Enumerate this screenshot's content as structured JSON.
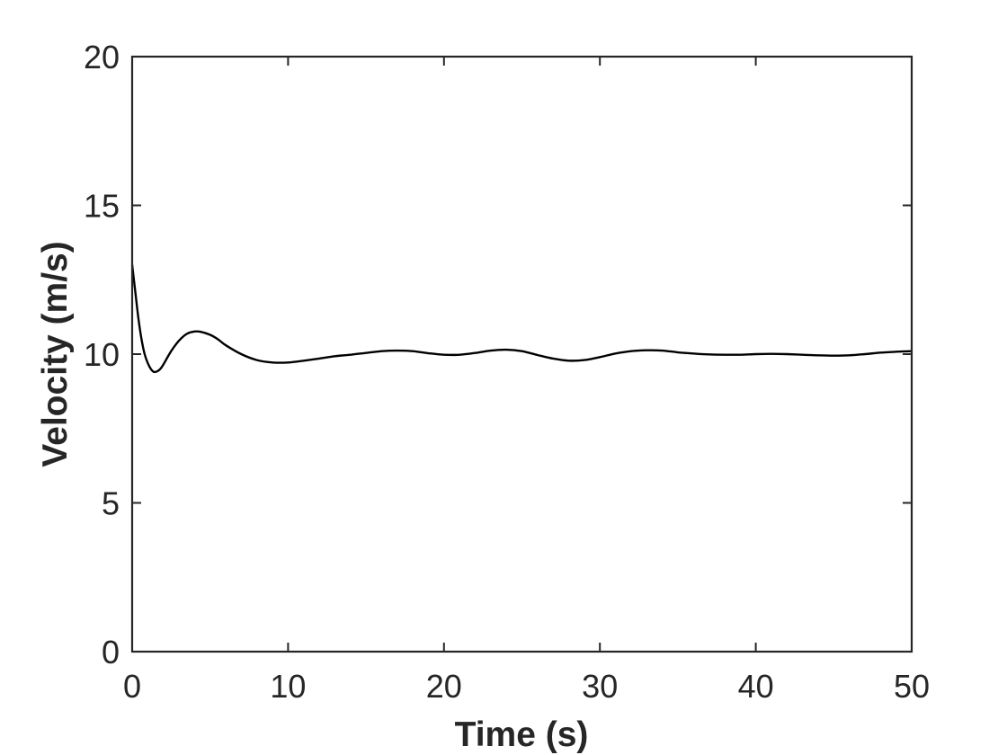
{
  "chart_data": {
    "type": "line",
    "title": "",
    "xlabel": "Time (s)",
    "ylabel": "Velocity (m/s)",
    "xlim": [
      0,
      50
    ],
    "ylim": [
      0,
      20
    ],
    "xticks": [
      0,
      10,
      20,
      30,
      40,
      50
    ],
    "yticks": [
      0,
      5,
      10,
      15,
      20
    ],
    "xtick_labels": [
      "0",
      "10",
      "20",
      "30",
      "40",
      "50"
    ],
    "ytick_labels": [
      "0",
      "5",
      "10",
      "15",
      "20"
    ],
    "grid": false,
    "line_color": "#000000",
    "axis_color": "#262626",
    "series": [
      {
        "x": [
          0,
          0.2,
          0.4,
          0.6,
          0.8,
          1.0,
          1.2,
          1.4,
          1.6,
          1.8,
          2.0,
          2.5,
          3.0,
          3.5,
          4.0,
          4.4,
          5.0,
          5.5,
          6.0,
          7.0,
          8.0,
          9.0,
          10.0,
          11.0,
          12.0,
          13.0,
          14.0,
          15.0,
          16.0,
          17.0,
          18.0,
          19.0,
          20.0,
          21.0,
          22.0,
          23.0,
          24.0,
          25.0,
          26.0,
          27.0,
          28.0,
          29.0,
          30.0,
          31.0,
          32.0,
          33.0,
          34.0,
          35.0,
          36.0,
          37.0,
          38.0,
          39.0,
          40.0,
          41.0,
          42.0,
          43.0,
          44.0,
          45.0,
          46.0,
          47.0,
          48.0,
          49.0,
          50.0
        ],
        "values": [
          13.0,
          12.1,
          11.2,
          10.5,
          10.0,
          9.7,
          9.5,
          9.4,
          9.42,
          9.5,
          9.65,
          10.1,
          10.45,
          10.68,
          10.76,
          10.75,
          10.65,
          10.5,
          10.3,
          10.0,
          9.8,
          9.72,
          9.72,
          9.78,
          9.85,
          9.93,
          9.98,
          10.04,
          10.1,
          10.12,
          10.1,
          10.03,
          9.98,
          9.98,
          10.04,
          10.12,
          10.15,
          10.1,
          9.97,
          9.85,
          9.78,
          9.8,
          9.9,
          10.02,
          10.1,
          10.13,
          10.12,
          10.06,
          10.02,
          9.99,
          9.98,
          9.98,
          10.0,
          10.01,
          10.0,
          9.98,
          9.96,
          9.95,
          9.96,
          10.0,
          10.05,
          10.08,
          10.1
        ]
      }
    ]
  }
}
